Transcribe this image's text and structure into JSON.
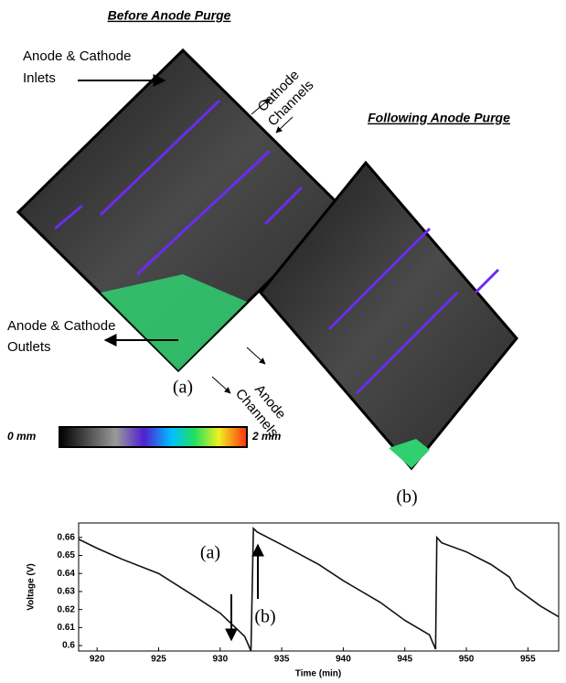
{
  "figure": {
    "before_title": "Before Anode Purge",
    "after_title": "Following Anode Purge",
    "inlets_label": [
      "Anode & Cathode",
      "Inlets"
    ],
    "outlets_label": [
      "Anode & Cathode",
      "Outlets"
    ],
    "cathode_channels": [
      "Cathode",
      "Channels"
    ],
    "anode_channels": [
      "Anode",
      "Channels"
    ],
    "panel_a": "(a)",
    "panel_b": "(b)",
    "colorbar_min": "0 mm",
    "colorbar_max": "2 mm"
  },
  "chart_data": {
    "type": "line",
    "xlabel": "Time (min)",
    "ylabel": "Voltage (V)",
    "x": [
      918.5,
      920,
      922,
      925,
      928,
      930,
      932,
      932.5,
      932.7,
      933,
      935,
      938,
      940,
      943,
      945,
      947,
      947.5,
      947.6,
      948,
      950,
      952,
      953.5,
      954,
      956,
      957.5
    ],
    "series": [
      {
        "name": "Voltage",
        "color": "#111111",
        "values": [
          0.659,
          0.654,
          0.648,
          0.64,
          0.627,
          0.618,
          0.605,
          0.597,
          0.665,
          0.663,
          0.656,
          0.645,
          0.636,
          0.624,
          0.614,
          0.606,
          0.598,
          0.66,
          0.657,
          0.652,
          0.645,
          0.638,
          0.632,
          0.622,
          0.616
        ]
      }
    ],
    "xlim": [
      918.5,
      957.5
    ],
    "ylim": [
      0.597,
      0.668
    ],
    "xticks": [
      920,
      925,
      930,
      935,
      940,
      945,
      950,
      955
    ],
    "yticks": [
      0.6,
      0.61,
      0.62,
      0.63,
      0.64,
      0.65,
      0.66
    ],
    "annotations": [
      "(a)",
      "(b)"
    ]
  }
}
